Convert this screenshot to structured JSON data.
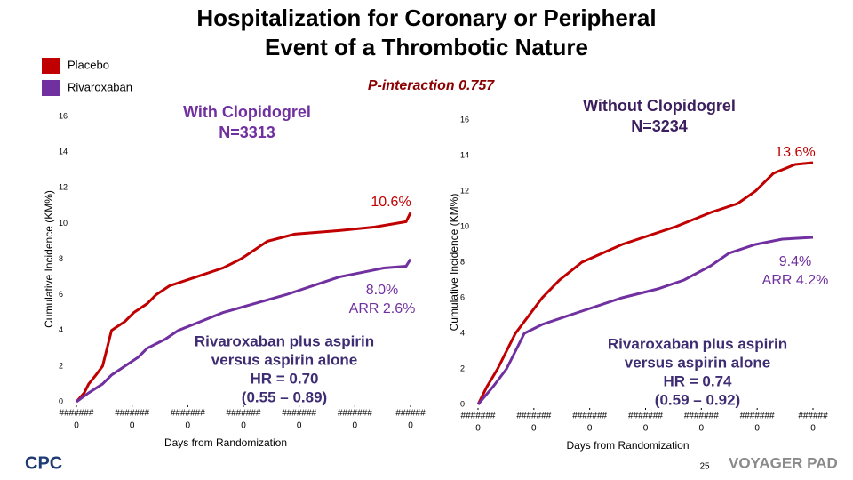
{
  "slide": {
    "title": [
      "Hospitalization for Coronary or Peripheral",
      "Event of a Thrombotic Nature"
    ],
    "p_interaction": "P-interaction 0.757",
    "page_number": "25",
    "logos": [
      "CPC",
      "VOYAGER PAD"
    ]
  },
  "chart_data": [
    {
      "type": "line",
      "title": [
        "With Clopidogrel",
        "N=3313"
      ],
      "ylabel": "Cumulative Incidence (KM%)",
      "xlabel": "Days from Randomization",
      "ylim": [
        0,
        16
      ],
      "yticks": [
        0,
        2,
        4,
        6,
        8,
        10,
        12,
        14,
        16
      ],
      "xlim": [
        0,
        6
      ],
      "xticks": [
        {
          "value": 0,
          "label": "#######"
        },
        {
          "value": 1,
          "label": "#######"
        },
        {
          "value": 2,
          "label": "#######"
        },
        {
          "value": 3,
          "label": "#######"
        },
        {
          "value": 4,
          "label": "#######"
        },
        {
          "value": 5,
          "label": "#######"
        },
        {
          "value": 6,
          "label": "######"
        }
      ],
      "xtick_sublabels": [
        "0",
        "0",
        "0",
        "0",
        "0",
        "0",
        "0"
      ],
      "series": [
        {
          "name": "Placebo",
          "color": "#c00000",
          "x": [
            0,
            0.14,
            0.22,
            0.35,
            0.47,
            0.55,
            0.63,
            0.87,
            1.03,
            1.27,
            1.43,
            1.67,
            2.15,
            2.63,
            2.95,
            3.19,
            3.43,
            3.92,
            4.72,
            5.36,
            5.92,
            6
          ],
          "values": [
            0,
            0.5,
            1,
            1.5,
            2,
            3,
            4,
            4.5,
            5,
            5.5,
            6,
            6.5,
            7,
            7.5,
            8,
            8.5,
            9,
            9.4,
            9.6,
            9.8,
            10.1,
            10.6
          ]
        },
        {
          "name": "Rivaroxaban",
          "color": "#7030a0",
          "x": [
            0,
            0.22,
            0.47,
            0.63,
            0.87,
            1.11,
            1.27,
            1.59,
            1.83,
            2.23,
            2.63,
            3.19,
            3.76,
            4.24,
            4.72,
            5.2,
            5.52,
            5.92,
            6
          ],
          "values": [
            0,
            0.5,
            1,
            1.5,
            2,
            2.5,
            3,
            3.5,
            4,
            4.5,
            5,
            5.5,
            6,
            6.5,
            7,
            7.3,
            7.5,
            7.6,
            8.0
          ]
        }
      ],
      "annotations": [
        {
          "lines": [
            "10.6%"
          ],
          "color": "#c00000"
        },
        {
          "lines": [
            "8.0%",
            "ARR 2.6%"
          ],
          "color": "#7030a0"
        },
        {
          "lines": [
            "Rivaroxaban plus aspirin",
            "versus aspirin alone",
            "HR = 0.70",
            "(0.55 – 0.89)"
          ],
          "color": "#3f2d73"
        }
      ]
    },
    {
      "type": "line",
      "title": [
        "Without Clopidogrel",
        "N=3234"
      ],
      "ylabel": "Cumulative Incidence (KM%)",
      "xlabel": "Days from Randomization",
      "ylim": [
        0,
        16
      ],
      "yticks": [
        0,
        2,
        4,
        6,
        8,
        10,
        12,
        14,
        16
      ],
      "xlim": [
        0,
        6
      ],
      "xticks": [
        {
          "value": 0,
          "label": "#######"
        },
        {
          "value": 1,
          "label": "#######"
        },
        {
          "value": 2,
          "label": "#######"
        },
        {
          "value": 3,
          "label": "#######"
        },
        {
          "value": 4,
          "label": "#######"
        },
        {
          "value": 5,
          "label": "#######"
        },
        {
          "value": 6,
          "label": "######"
        }
      ],
      "xtick_sublabels": [
        "0",
        "0",
        "0",
        "0",
        "0",
        "0",
        "0"
      ],
      "series": [
        {
          "color": "#c00000",
          "x": [
            0,
            0.16,
            0.35,
            0.51,
            0.67,
            0.91,
            1.15,
            1.46,
            1.86,
            2.58,
            3.54,
            4.17,
            4.65,
            4.97,
            5.29,
            5.68,
            6
          ],
          "values": [
            0,
            1,
            2,
            3,
            4,
            5,
            6,
            7,
            8,
            9,
            10,
            10.8,
            11.3,
            12,
            13,
            13.5,
            13.6
          ]
        },
        {
          "color": "#7030a0",
          "x": [
            0,
            0.27,
            0.51,
            0.67,
            0.83,
            1.15,
            1.62,
            2.1,
            2.58,
            3.22,
            3.69,
            4.17,
            4.49,
            4.97,
            5.45,
            6
          ],
          "values": [
            0,
            1,
            2,
            3,
            4,
            4.5,
            5,
            5.5,
            6,
            6.5,
            7,
            7.8,
            8.5,
            9,
            9.3,
            9.4
          ]
        }
      ],
      "annotations": [
        {
          "lines": [
            "13.6%"
          ],
          "color": "#c00000"
        },
        {
          "lines": [
            "9.4%",
            "ARR 4.2%"
          ],
          "color": "#7030a0"
        },
        {
          "lines": [
            "Rivaroxaban plus aspirin",
            "versus aspirin alone",
            "HR = 0.74",
            "(0.59 – 0.92)"
          ],
          "color": "#3f2d73"
        }
      ]
    }
  ]
}
